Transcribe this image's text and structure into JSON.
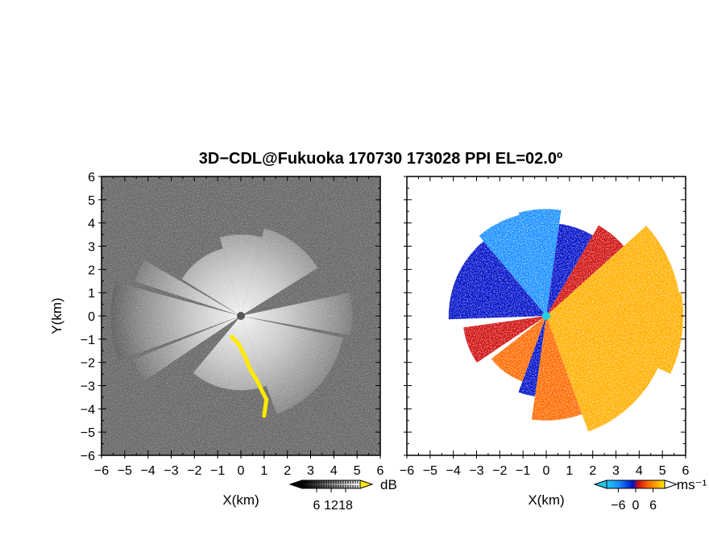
{
  "title": "3D−CDL@Fukuoka 170730 173028 PPI EL=02.0º",
  "chart_data": [
    {
      "type": "heatmap",
      "panel": "left",
      "quantity": "backscatter intensity (SNR)",
      "xlabel": "X(km)",
      "ylabel": "Y(km)",
      "xlim": [
        -6,
        6
      ],
      "ylim": [
        -6,
        6
      ],
      "xticks": [
        "−6",
        "−5",
        "−4",
        "−3",
        "−2",
        "−1",
        "0",
        "1",
        "2",
        "3",
        "4",
        "5",
        "6"
      ],
      "yticks": [
        "6",
        "5",
        "4",
        "3",
        "2",
        "1",
        "0",
        "−1",
        "−2",
        "−3",
        "−4",
        "−5",
        "−6"
      ],
      "colorbar": {
        "unit": "dB",
        "ticks": [
          "6",
          "12",
          "18"
        ],
        "tick_values": [
          6,
          12,
          18
        ],
        "range": [
          0,
          24
        ],
        "colors": [
          "#000000",
          "#ffffff"
        ],
        "over_color": "#ffea00"
      },
      "background_color": "#2a2a2a",
      "echo_sectors": [
        {
          "from_deg": 15,
          "to_deg": 58,
          "range_km": 3.9
        },
        {
          "from_deg": 78,
          "to_deg": 100,
          "range_km": 4.8
        },
        {
          "from_deg": 102,
          "to_deg": 160,
          "range_km": 4.5
        },
        {
          "from_deg": 160,
          "to_deg": 220,
          "range_km": 3.2
        },
        {
          "from_deg": 236,
          "to_deg": 248,
          "range_km": 5.0
        },
        {
          "from_deg": 250,
          "to_deg": 285,
          "range_km": 5.6
        },
        {
          "from_deg": 288,
          "to_deg": 300,
          "range_km": 4.8
        },
        {
          "from_deg": 302,
          "to_deg": 345,
          "range_km": 3.0
        },
        {
          "from_deg": 345,
          "to_deg": 375,
          "range_km": 3.5
        }
      ],
      "saturated_band": [
        [
          -0.4,
          -0.9
        ],
        [
          -0.1,
          -1.2
        ],
        [
          0.2,
          -1.8
        ],
        [
          0.4,
          -2.3
        ],
        [
          0.7,
          -2.8
        ],
        [
          0.9,
          -3.2
        ],
        [
          1.1,
          -3.6
        ],
        [
          1.0,
          -4.3
        ]
      ]
    },
    {
      "type": "heatmap",
      "panel": "right",
      "quantity": "Doppler radial velocity",
      "xlabel": "X(km)",
      "xlim": [
        -6,
        6
      ],
      "ylim": [
        -6,
        6
      ],
      "xticks": [
        "−6",
        "−5",
        "−4",
        "−3",
        "−2",
        "−1",
        "0",
        "1",
        "2",
        "3",
        "4",
        "5",
        "6"
      ],
      "colorbar": {
        "unit": "ms⁻¹",
        "ticks": [
          "−6",
          "0",
          "6"
        ],
        "tick_values": [
          -6,
          0,
          6
        ],
        "range": [
          -10,
          10
        ],
        "colors": [
          "#20c8f0",
          "#1a90ff",
          "#0010c8",
          "#d01010",
          "#ff6a00",
          "#ffb000",
          "#fff000"
        ]
      },
      "velocity_sectors": [
        {
          "from_deg": 268,
          "to_deg": 320,
          "range_km": 4.2,
          "value": -5
        },
        {
          "from_deg": 320,
          "to_deg": 345,
          "range_km": 4.5,
          "value": -6
        },
        {
          "from_deg": 345,
          "to_deg": 368,
          "range_km": 4.6,
          "value": -7
        },
        {
          "from_deg": 8,
          "to_deg": 30,
          "range_km": 4.0,
          "value": -2
        },
        {
          "from_deg": 30,
          "to_deg": 48,
          "range_km": 4.5,
          "value": 1
        },
        {
          "from_deg": 48,
          "to_deg": 80,
          "range_km": 5.8,
          "value": 5
        },
        {
          "from_deg": 80,
          "to_deg": 115,
          "range_km": 5.9,
          "value": 6
        },
        {
          "from_deg": 115,
          "to_deg": 160,
          "range_km": 5.3,
          "value": 5
        },
        {
          "from_deg": 160,
          "to_deg": 188,
          "range_km": 4.5,
          "value": 3
        },
        {
          "from_deg": 188,
          "to_deg": 200,
          "range_km": 3.5,
          "value": -2
        },
        {
          "from_deg": 200,
          "to_deg": 232,
          "range_km": 3.0,
          "value": 2
        },
        {
          "from_deg": 236,
          "to_deg": 262,
          "range_km": 3.6,
          "value": -1
        }
      ]
    }
  ]
}
